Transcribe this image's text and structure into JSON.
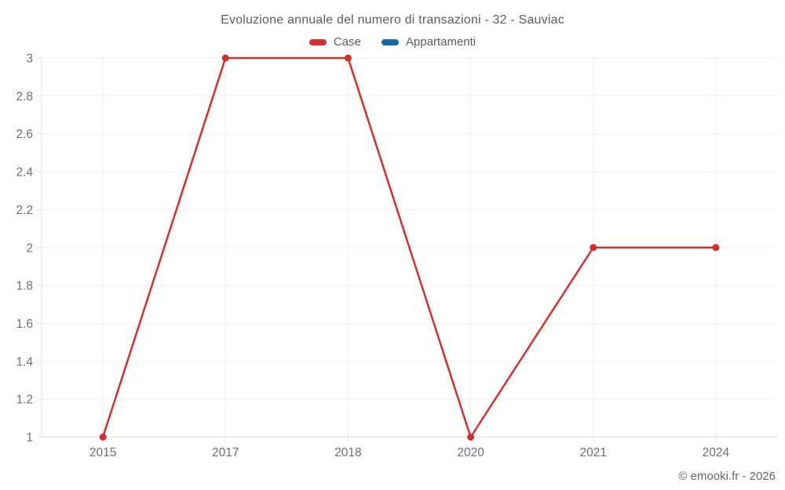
{
  "chart_data": {
    "type": "line",
    "title": "Evoluzione annuale del numero di transazioni - 32 - Sauviac",
    "categories": [
      "2015",
      "2017",
      "2018",
      "2020",
      "2021",
      "2024"
    ],
    "series": [
      {
        "name": "Case",
        "color": "#d32f2f",
        "values": [
          1,
          3,
          3,
          1,
          2,
          2
        ]
      },
      {
        "name": "Appartamenti",
        "color": "#1769aa",
        "values": []
      }
    ],
    "xlabel": "",
    "ylabel": "",
    "ylim": [
      1,
      3
    ],
    "ytick_step": 0.2,
    "grid": true,
    "legend_position": "top",
    "footer": "© emooki.fr - 2026"
  }
}
